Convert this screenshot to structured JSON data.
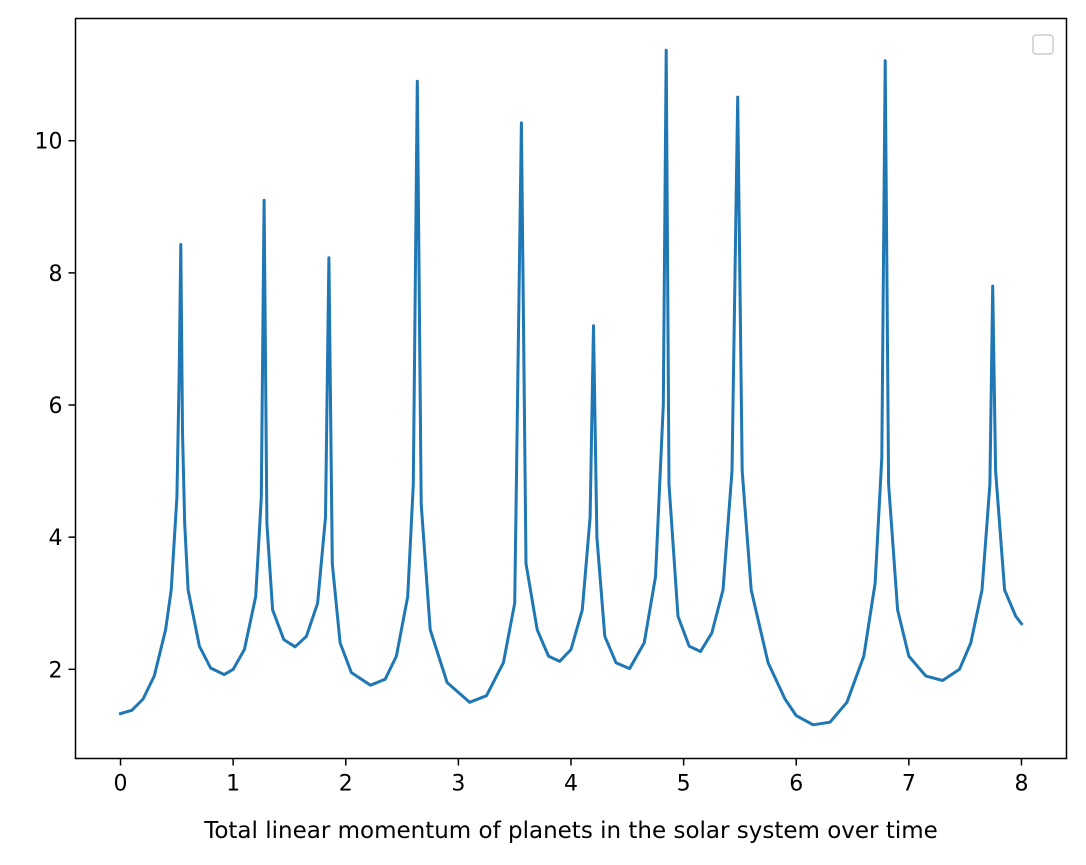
{
  "chart_data": {
    "type": "line",
    "title": "",
    "xlabel": "Total linear momentum of planets in the solar system over time",
    "ylabel": "",
    "xlim": [
      -0.4,
      8.4
    ],
    "ylim": [
      0.65,
      11.85
    ],
    "x_ticks": [
      0,
      1,
      2,
      3,
      4,
      5,
      6,
      7,
      8
    ],
    "y_ticks": [
      2,
      4,
      6,
      8,
      10
    ],
    "grid": false,
    "legend": "top-right (empty)",
    "line_color": "#1f77b4",
    "series": [
      {
        "x": [
          0.0,
          0.1,
          0.2,
          0.3,
          0.4,
          0.45,
          0.5,
          0.52,
          0.535,
          0.55,
          0.57,
          0.6,
          0.7,
          0.8,
          0.92,
          1.0,
          1.1,
          1.2,
          1.25,
          1.275,
          1.3,
          1.35,
          1.45,
          1.55,
          1.65,
          1.75,
          1.82,
          1.85,
          1.88,
          1.95,
          2.05,
          2.22,
          2.35,
          2.45,
          2.55,
          2.6,
          2.635,
          2.67,
          2.75,
          2.9,
          3.1,
          3.25,
          3.4,
          3.5,
          3.56,
          3.6,
          3.7,
          3.8,
          3.9,
          4.0,
          4.1,
          4.17,
          4.2,
          4.23,
          4.3,
          4.4,
          4.52,
          4.65,
          4.75,
          4.82,
          4.845,
          4.87,
          4.95,
          5.05,
          5.15,
          5.25,
          5.35,
          5.43,
          5.48,
          5.52,
          5.6,
          5.75,
          5.9,
          6.0,
          6.15,
          6.3,
          6.45,
          6.6,
          6.7,
          6.76,
          6.79,
          6.82,
          6.9,
          7.0,
          7.15,
          7.3,
          7.45,
          7.55,
          7.65,
          7.72,
          7.745,
          7.77,
          7.85,
          7.95,
          8.0
        ],
        "y": [
          1.33,
          1.38,
          1.55,
          1.9,
          2.6,
          3.2,
          4.6,
          6.4,
          8.43,
          5.6,
          4.2,
          3.2,
          2.35,
          2.02,
          1.92,
          2.0,
          2.3,
          3.1,
          4.6,
          9.1,
          4.2,
          2.9,
          2.45,
          2.34,
          2.5,
          3.0,
          4.3,
          8.23,
          3.6,
          2.4,
          1.95,
          1.76,
          1.85,
          2.2,
          3.1,
          4.8,
          10.9,
          4.5,
          2.6,
          1.8,
          1.5,
          1.6,
          2.1,
          3.0,
          10.27,
          3.6,
          2.6,
          2.2,
          2.12,
          2.3,
          2.9,
          4.3,
          7.2,
          4.0,
          2.5,
          2.1,
          2.01,
          2.4,
          3.4,
          6.0,
          11.37,
          4.8,
          2.8,
          2.35,
          2.27,
          2.55,
          3.2,
          5.0,
          10.66,
          5.0,
          3.2,
          2.1,
          1.55,
          1.3,
          1.16,
          1.2,
          1.5,
          2.2,
          3.3,
          5.2,
          11.21,
          4.8,
          2.9,
          2.2,
          1.9,
          1.83,
          2.0,
          2.4,
          3.2,
          4.8,
          7.8,
          5.0,
          3.2,
          2.8,
          2.69
        ]
      }
    ]
  }
}
